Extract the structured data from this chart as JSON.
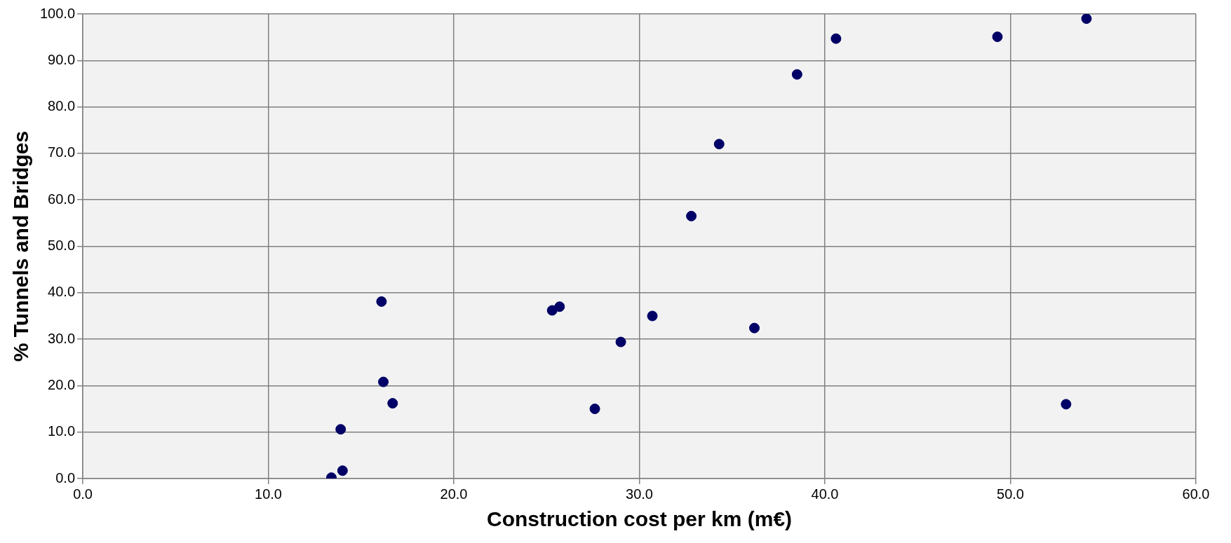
{
  "chart_data": {
    "type": "scatter",
    "xlabel": "Construction cost per km (m€)",
    "ylabel": "% Tunnels and Bridges",
    "x": [
      13.4,
      14.0,
      13.9,
      16.2,
      16.7,
      16.1,
      25.3,
      25.7,
      27.6,
      29.0,
      30.7,
      32.8,
      34.3,
      36.2,
      38.5,
      40.6,
      49.3,
      53.0,
      54.1
    ],
    "series": [
      {
        "color": "#000066",
        "values": [
          0.2,
          1.7,
          10.6,
          20.8,
          16.2,
          38.1,
          36.2,
          37.0,
          15.0,
          29.4,
          35.0,
          56.5,
          72.0,
          32.4,
          87.0,
          94.7,
          95.1,
          16.0,
          99.0
        ]
      }
    ],
    "xlim": [
      0,
      60
    ],
    "xticks": [
      {
        "value": 0,
        "label": "0.0"
      },
      {
        "value": 10,
        "label": "10.0"
      },
      {
        "value": 20,
        "label": "20.0"
      },
      {
        "value": 30,
        "label": "30.0"
      },
      {
        "value": 40,
        "label": "40.0"
      },
      {
        "value": 50,
        "label": "50.0"
      },
      {
        "value": 60,
        "label": "60.0"
      }
    ],
    "ylim": [
      0,
      100
    ],
    "yticks": [
      {
        "value": 0,
        "label": "0.0"
      },
      {
        "value": 10,
        "label": "10.0"
      },
      {
        "value": 20,
        "label": "20.0"
      },
      {
        "value": 30,
        "label": "30.0"
      },
      {
        "value": 40,
        "label": "40.0"
      },
      {
        "value": 50,
        "label": "50.0"
      },
      {
        "value": 60,
        "label": "60.0"
      },
      {
        "value": 70,
        "label": "70.0"
      },
      {
        "value": 80,
        "label": "80.0"
      },
      {
        "value": 90,
        "label": "90.0"
      },
      {
        "value": 100,
        "label": "100.0"
      }
    ],
    "grid": true,
    "legend": false,
    "marker": "circle"
  }
}
